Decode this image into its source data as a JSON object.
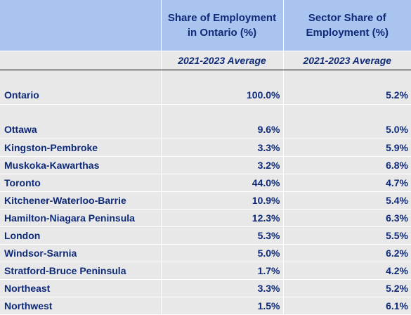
{
  "header": {
    "col1": "",
    "col2_line1": "Share of Employment",
    "col2_line2": "in Ontario (%)",
    "col3_line1": "Sector Share of",
    "col3_line2": "Employment (%)"
  },
  "subheader": {
    "col2": "2021-2023 Average",
    "col3": "2021-2023 Average"
  },
  "summary": {
    "name": "Ontario",
    "share": "100.0%",
    "sector": "5.2%"
  },
  "regions": [
    {
      "name": "Ottawa",
      "share": "9.6%",
      "sector": "5.0%"
    },
    {
      "name": "Kingston-Pembroke",
      "share": "3.3%",
      "sector": "5.9%"
    },
    {
      "name": "Muskoka-Kawarthas",
      "share": "3.2%",
      "sector": "6.8%"
    },
    {
      "name": "Toronto",
      "share": "44.0%",
      "sector": "4.7%"
    },
    {
      "name": "Kitchener-Waterloo-Barrie",
      "share": "10.9%",
      "sector": "5.4%"
    },
    {
      "name": "Hamilton-Niagara Peninsula",
      "share": "12.3%",
      "sector": "6.3%"
    },
    {
      "name": "London",
      "share": "5.3%",
      "sector": "5.5%"
    },
    {
      "name": "Windsor-Sarnia",
      "share": "5.0%",
      "sector": "6.2%"
    },
    {
      "name": "Stratford-Bruce Peninsula",
      "share": "1.7%",
      "sector": "4.2%"
    },
    {
      "name": "Northeast",
      "share": "3.3%",
      "sector": "5.2%"
    },
    {
      "name": "Northwest",
      "share": "1.5%",
      "sector": "6.1%"
    }
  ],
  "colors": {
    "header_bg": "#a9c4ef",
    "cell_bg": "#e8e8e8",
    "text": "#0e2a78"
  }
}
